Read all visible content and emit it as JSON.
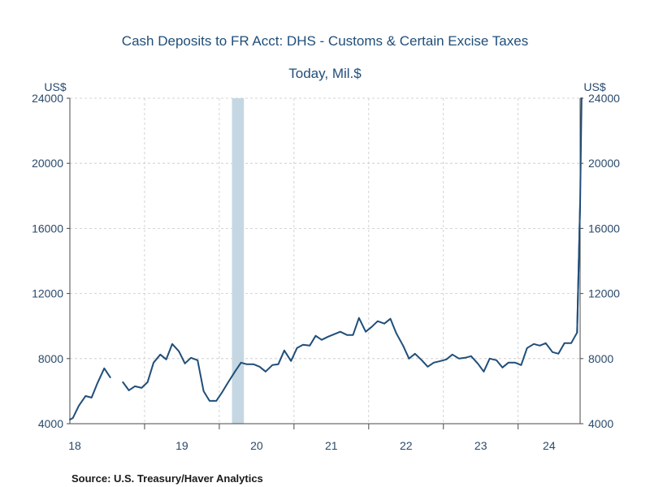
{
  "chart_data": {
    "type": "line",
    "title": "Cash Deposits to FR Acct: DHS - Customs & Certain Excise Taxes",
    "subtitle": "Today, Mil.$",
    "ylabel_left": "US$",
    "ylabel_right": "US$",
    "source": "Source:  U.S. Treasury/Haver Analytics",
    "ylim": [
      4000,
      24000
    ],
    "y_ticks": [
      4000,
      8000,
      12000,
      16000,
      20000,
      24000
    ],
    "x_tick_labels": [
      "18",
      "19",
      "20",
      "21",
      "22",
      "23",
      "24"
    ],
    "xlim": [
      2018.0,
      2024.83
    ],
    "grid": true,
    "recession_shading": [
      {
        "start": 2020.17,
        "end": 2020.33
      }
    ],
    "series": [
      {
        "name": "Cash Deposits",
        "color": "#1f4e79",
        "segments": [
          {
            "x": [
              2018.0,
              2018.04,
              2018.12,
              2018.21,
              2018.29,
              2018.37,
              2018.46,
              2018.54
            ],
            "values": [
              4250,
              4350,
              5100,
              5700,
              5600,
              6500,
              7400,
              6850
            ]
          },
          {
            "x": [
              2018.71,
              2018.79,
              2018.87,
              2018.96,
              2019.04,
              2019.12,
              2019.21,
              2019.29,
              2019.37,
              2019.46,
              2019.54,
              2019.62,
              2019.71,
              2019.79,
              2019.87,
              2019.96,
              2020.04,
              2020.12,
              2020.21,
              2020.29,
              2020.37,
              2020.46,
              2020.54,
              2020.62,
              2020.71,
              2020.79,
              2020.87,
              2020.96,
              2021.04,
              2021.12,
              2021.21,
              2021.29,
              2021.37,
              2021.46,
              2021.54,
              2021.62,
              2021.71,
              2021.79,
              2021.87,
              2021.96,
              2022.04,
              2022.12,
              2022.21,
              2022.29,
              2022.37,
              2022.46,
              2022.54,
              2022.62,
              2022.71,
              2022.79,
              2022.87,
              2022.96,
              2023.04,
              2023.12,
              2023.21,
              2023.29,
              2023.37,
              2023.46,
              2023.54,
              2023.62,
              2023.71,
              2023.79,
              2023.87,
              2023.96,
              2024.04,
              2024.12,
              2024.21,
              2024.29,
              2024.37,
              2024.46,
              2024.54,
              2024.62,
              2024.71,
              2024.79,
              2024.83
            ],
            "values": [
              6550,
              6050,
              6300,
              6200,
              6550,
              7750,
              8250,
              7950,
              8900,
              8450,
              7700,
              8050,
              7900,
              6000,
              5400,
              5400,
              5950,
              6550,
              7200,
              7750,
              7650,
              7650,
              7500,
              7200,
              7600,
              7650,
              8500,
              7850,
              8650,
              8850,
              8800,
              9400,
              9150,
              9350,
              9500,
              9650,
              9450,
              9450,
              10500,
              9650,
              9950,
              10300,
              10150,
              10450,
              9550,
              8800,
              8000,
              8300,
              7900,
              7500,
              7750,
              7850,
              7950,
              8250,
              8000,
              8050,
              8150,
              7700,
              7200,
              8000,
              7900,
              7450,
              7750,
              7750,
              7600,
              8650,
              8900,
              8800,
              8950,
              8400,
              8300,
              8950,
              8950,
              9600,
              17500
            ]
          },
          {
            "x": [
              2024.79,
              2024.83,
              2024.85
            ],
            "values": [
              9600,
              17500,
              24000
            ]
          }
        ]
      }
    ]
  }
}
